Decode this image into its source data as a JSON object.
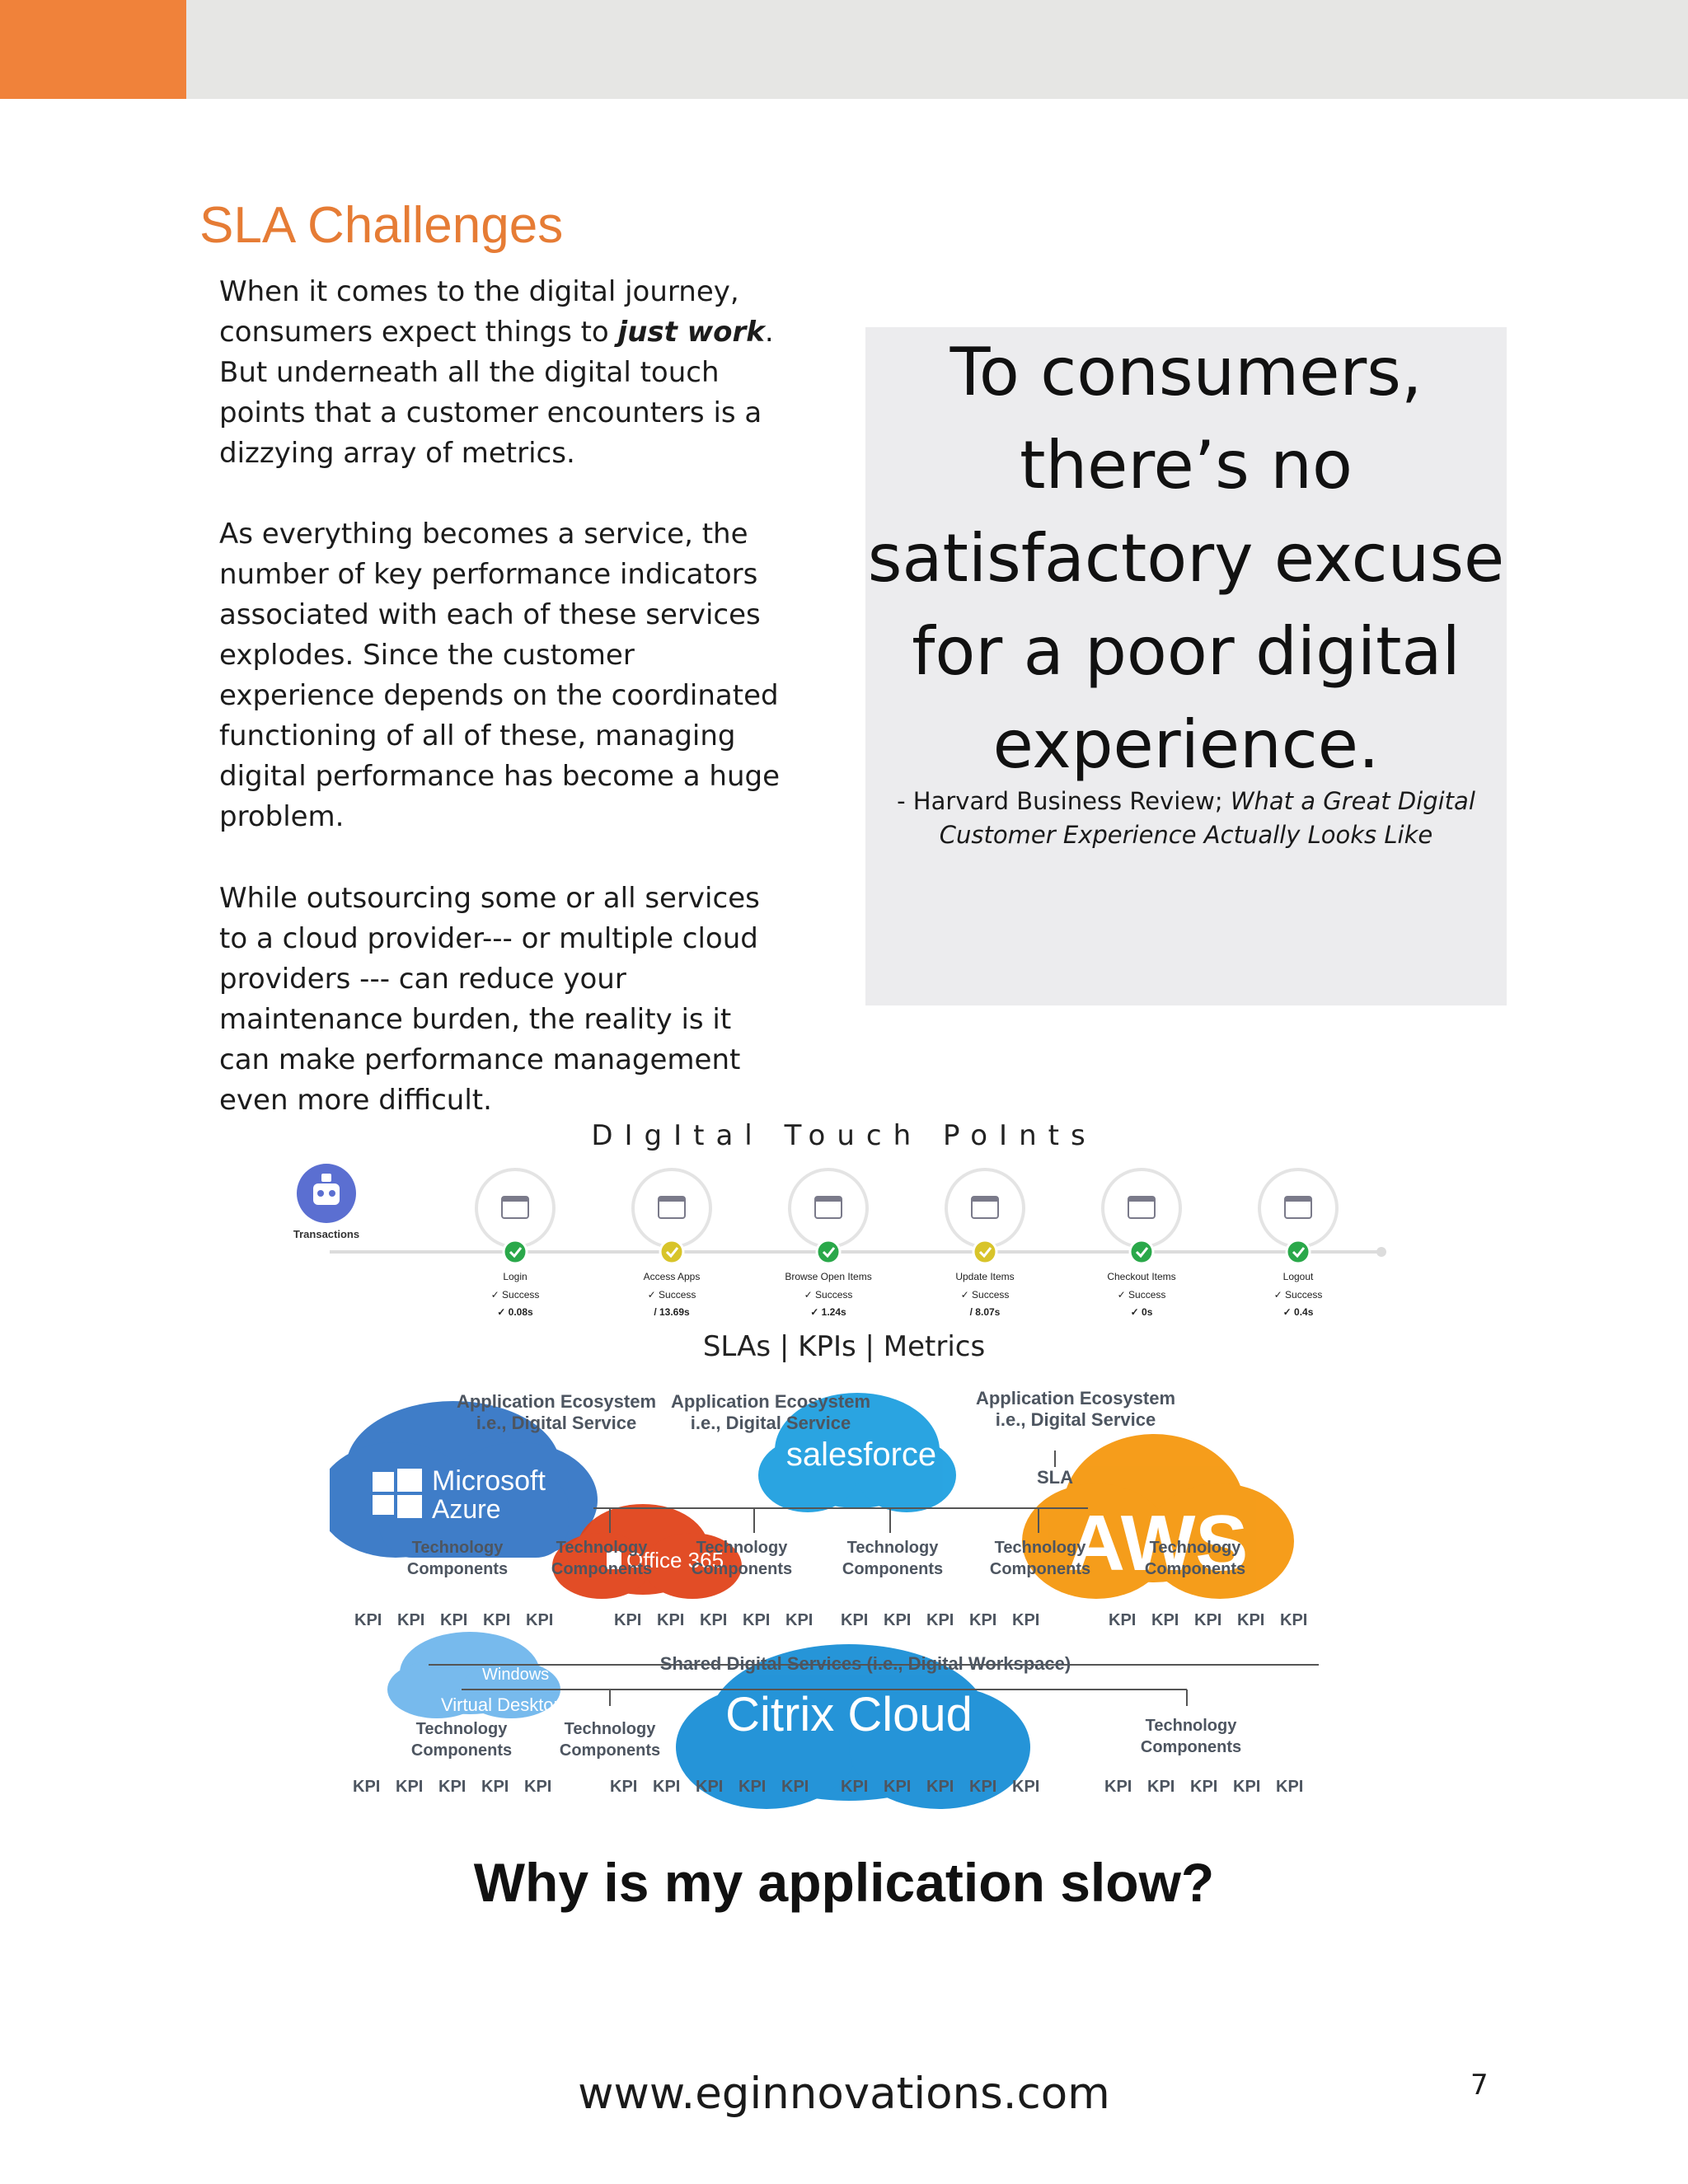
{
  "header": {
    "accent_color": "#f0823a",
    "bar_color": "#e6e6e4"
  },
  "section": {
    "title": "SLA Challenges"
  },
  "body": {
    "p1_before": "When it comes to the digital journey, consumers expect things to ",
    "p1_emphasis": "just work",
    "p1_after": ". But underneath all the digital touch points that a customer encounters is a dizzying array of metrics.",
    "p2": "As everything becomes a service, the number of key performance indicators associated with each of these services explodes. Since the customer experience depends on the coordinated functioning of all of these, managing digital performance has become a huge problem.",
    "p3": "While outsourcing some or all services to a cloud provider--- or multiple cloud providers --- can reduce your maintenance burden, the reality is it can make performance management even more difficult."
  },
  "quote": {
    "text": "To consumers, there’s no satisfactory excuse for a poor digital experience.",
    "source_prefix": "- Harvard Business Review; ",
    "source_title": "What a Great Digital Customer Experience Actually Looks Like"
  },
  "touch_points": {
    "title": "DIgItal Touch PoInts",
    "origin_label": "Transactions",
    "steps": [
      {
        "name": "Login",
        "status": "Success",
        "time": "0.08s",
        "state": "ok"
      },
      {
        "name": "Access Apps",
        "status": "Success",
        "time": "13.69s",
        "state": "warn"
      },
      {
        "name": "Browse Open Items",
        "status": "Success",
        "time": "1.24s",
        "state": "ok"
      },
      {
        "name": "Update Items",
        "status": "Success",
        "time": "8.07s",
        "state": "warn"
      },
      {
        "name": "Checkout Items",
        "status": "Success",
        "time": "0s",
        "state": "ok"
      },
      {
        "name": "Logout",
        "status": "Success",
        "time": "0.4s",
        "state": "ok"
      }
    ]
  },
  "metrics_label": "SLAs | KPIs | Metrics",
  "diagram": {
    "ecosystem_label_1": "Application Ecosystem",
    "ecosystem_label_2": "i.e., Digital Service",
    "sla": "SLA",
    "tech_1": "Technology",
    "tech_2": "Components",
    "kpi": "KPI",
    "shared": "Shared Digital Services (i.e., Digital Workspace)",
    "clouds": {
      "azure_1": "Microsoft",
      "azure_2": "Azure",
      "salesforce": "salesforce",
      "office": "Office 365",
      "aws": "AWS",
      "windows_1": "Windows",
      "windows_2": "Virtual Desktop",
      "citrix": "Citrix Cloud"
    }
  },
  "question": "Why is my application slow?",
  "footer": {
    "url": "www.eginnovations.com",
    "page": "7"
  }
}
